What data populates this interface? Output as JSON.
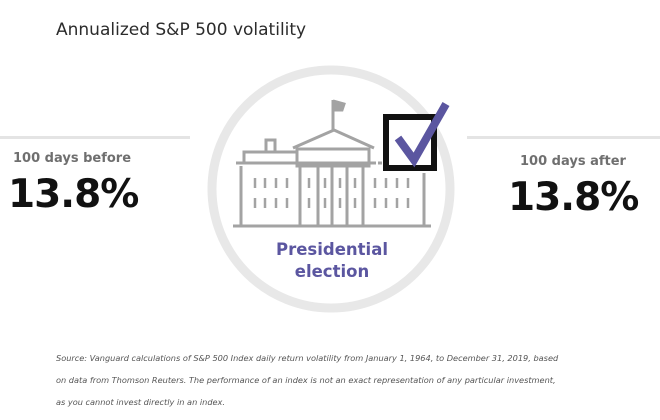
{
  "title": "Annualized S&P 500 volatility",
  "before": {
    "label": "100 days before",
    "value": "13.8%"
  },
  "after": {
    "label": "100 days after",
    "value": "13.8%"
  },
  "center": {
    "label_line1": "Presidential",
    "label_line2": "election",
    "icon": "white-house-with-checkbox",
    "accent_color": "#5b56a0",
    "building_color": "#a3a3a3",
    "ring_color": "#e8e8e8"
  },
  "source": {
    "lines": [
      "Source: Vanguard calculations of S&P 500 Index daily return volatility from January 1, 1964, to December 31, 2019, based",
      "on data from Thomson Reuters. The performance of an index is not an exact representation of any particular investment,",
      "as you cannot invest directly in an index."
    ]
  }
}
